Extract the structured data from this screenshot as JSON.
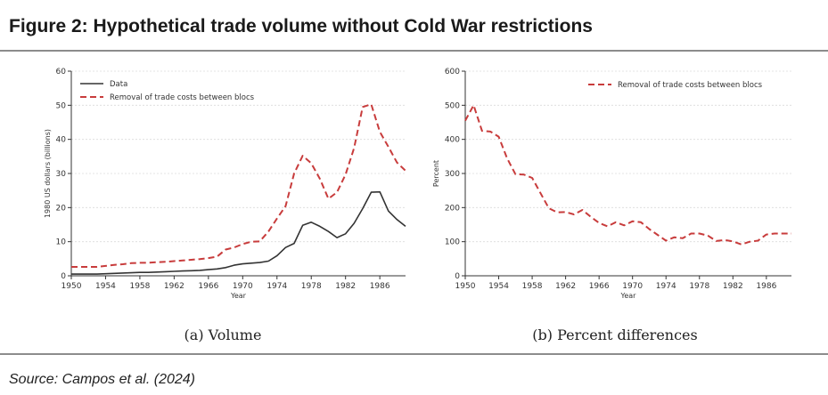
{
  "figure": {
    "title": "Figure 2: Hypothetical trade volume without Cold War restrictions",
    "source": "Source: Campos et al. (2024)"
  },
  "chart_data": [
    {
      "type": "line",
      "caption": "(a) Volume",
      "xlabel": "Year",
      "ylabel": "1980 US dollars (billions)",
      "xlim": [
        1950,
        1989
      ],
      "ylim": [
        0,
        60
      ],
      "xticks": [
        1950,
        1954,
        1958,
        1962,
        1966,
        1970,
        1974,
        1978,
        1982,
        1986
      ],
      "yticks": [
        0,
        10,
        20,
        30,
        40,
        50,
        60
      ],
      "grid": "horizontal",
      "legend": "top-left",
      "x": [
        1950,
        1951,
        1952,
        1953,
        1954,
        1955,
        1956,
        1957,
        1958,
        1959,
        1960,
        1961,
        1962,
        1963,
        1964,
        1965,
        1966,
        1967,
        1968,
        1969,
        1970,
        1971,
        1972,
        1973,
        1974,
        1975,
        1976,
        1977,
        1978,
        1979,
        1980,
        1981,
        1982,
        1983,
        1984,
        1985,
        1986,
        1987,
        1988,
        1989
      ],
      "series": [
        {
          "name": "Data",
          "color": "#333333",
          "style": "solid",
          "values": [
            0.5,
            0.5,
            0.5,
            0.5,
            0.6,
            0.7,
            0.8,
            0.9,
            1.0,
            1.0,
            1.1,
            1.2,
            1.3,
            1.4,
            1.5,
            1.6,
            1.8,
            2.0,
            2.4,
            3.1,
            3.5,
            3.7,
            3.9,
            4.3,
            5.9,
            8.3,
            9.5,
            14.8,
            15.7,
            14.5,
            13.0,
            11.2,
            12.3,
            15.4,
            19.7,
            24.5,
            24.6,
            19.0,
            16.5,
            14.5
          ]
        },
        {
          "name": "Removal of trade costs between blocs",
          "color": "#c83c3c",
          "style": "dashed",
          "values": [
            2.6,
            2.6,
            2.6,
            2.6,
            2.9,
            3.2,
            3.4,
            3.7,
            3.8,
            3.8,
            4.0,
            4.1,
            4.3,
            4.5,
            4.7,
            4.9,
            5.2,
            5.6,
            7.7,
            8.3,
            9.3,
            10.0,
            10.1,
            13.0,
            16.8,
            20.4,
            30.0,
            35.2,
            33.0,
            28.5,
            22.6,
            24.5,
            29.7,
            37.5,
            49.5,
            50.3,
            42.2,
            37.8,
            33.2,
            30.8
          ]
        }
      ]
    },
    {
      "type": "line",
      "caption": "(b) Percent differences",
      "xlabel": "Year",
      "ylabel": "Percent",
      "xlim": [
        1950,
        1989
      ],
      "ylim": [
        0,
        600
      ],
      "xticks": [
        1950,
        1954,
        1958,
        1962,
        1966,
        1970,
        1974,
        1978,
        1982,
        1986
      ],
      "yticks": [
        0,
        100,
        200,
        300,
        400,
        500,
        600
      ],
      "grid": "horizontal",
      "legend": "top-right",
      "x": [
        1950,
        1951,
        1952,
        1953,
        1954,
        1955,
        1956,
        1957,
        1958,
        1959,
        1960,
        1961,
        1962,
        1963,
        1964,
        1965,
        1966,
        1967,
        1968,
        1969,
        1970,
        1971,
        1972,
        1973,
        1974,
        1975,
        1976,
        1977,
        1978,
        1979,
        1980,
        1981,
        1982,
        1983,
        1984,
        1985,
        1986,
        1987,
        1988,
        1989
      ],
      "series": [
        {
          "name": "Removal of trade costs between blocs",
          "color": "#c83c3c",
          "style": "dashed",
          "values": [
            455,
            500,
            425,
            423,
            408,
            345,
            298,
            297,
            287,
            242,
            198,
            186,
            187,
            180,
            193,
            173,
            155,
            145,
            157,
            148,
            160,
            157,
            137,
            120,
            103,
            113,
            110,
            124,
            124,
            118,
            102,
            105,
            101,
            92,
            100,
            103,
            121,
            124,
            124,
            124
          ]
        }
      ]
    }
  ]
}
